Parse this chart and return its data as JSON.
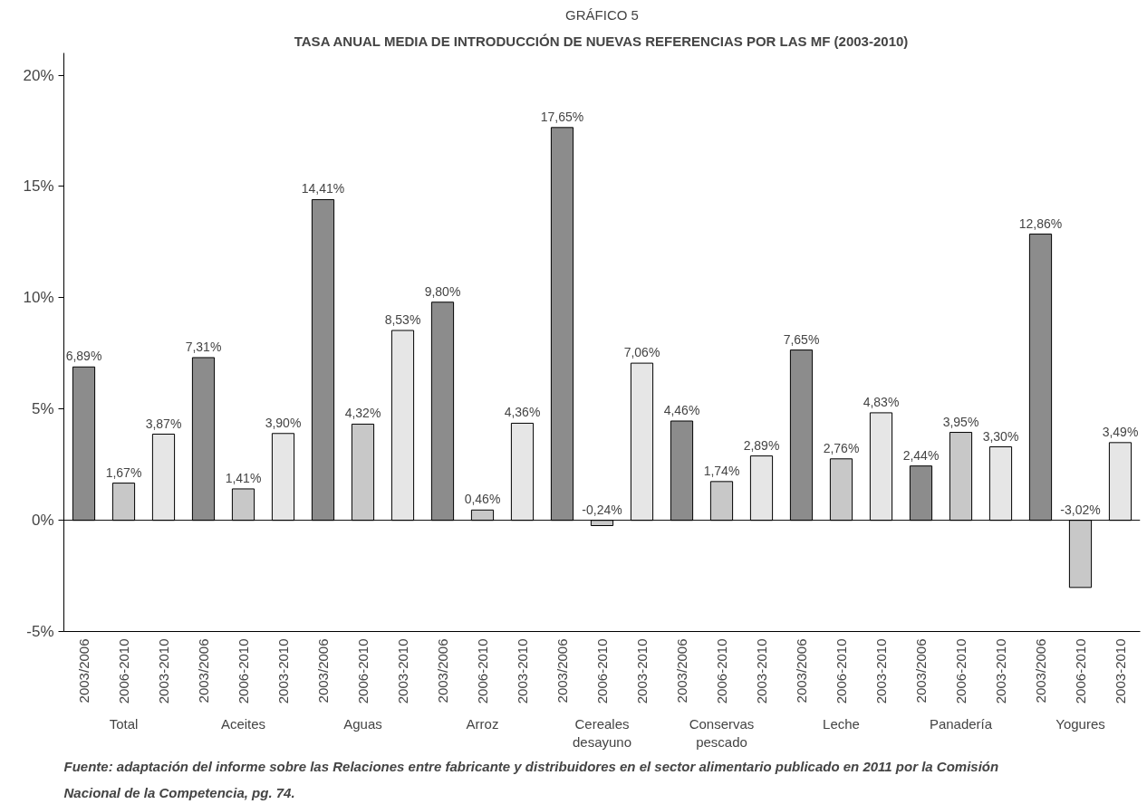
{
  "chart_data": {
    "type": "bar",
    "title": "GRÁFICO 5",
    "subtitle": "TASA ANUAL MEDIA DE INTRODUCCIÓN DE NUEVAS REFERENCIAS POR LAS MF (2003-2010)",
    "categories": [
      "2003/2006",
      "2006-2010",
      "2003-2010",
      "2003/2006",
      "2006-2010",
      "2003-2010",
      "2003/2006",
      "2006-2010",
      "2003-2010",
      "2003/2006",
      "2006-2010",
      "2003-2010",
      "2003/2006",
      "2006-2010",
      "2003-2010",
      "2003/2006",
      "2006-2010",
      "2003-2010",
      "2003/2006",
      "2006-2010",
      "2003-2010",
      "2003/2006",
      "2006-2010",
      "2003-2010",
      "2003/2006",
      "2006-2010",
      "2003-2010"
    ],
    "values": [
      6.89,
      1.67,
      3.87,
      7.31,
      1.41,
      3.9,
      14.41,
      4.32,
      8.53,
      9.8,
      0.46,
      4.36,
      17.65,
      -0.24,
      7.06,
      4.46,
      1.74,
      2.89,
      7.65,
      2.76,
      4.83,
      2.44,
      3.95,
      3.3,
      12.86,
      -3.02,
      3.49
    ],
    "value_labels": [
      "6,89%",
      "1,67%",
      "3,87%",
      "7,31%",
      "1,41%",
      "3,90%",
      "14,41%",
      "4,32%",
      "8,53%",
      "9,80%",
      "0,46%",
      "4,36%",
      "17,65%",
      "-0,24%",
      "7,06%",
      "4,46%",
      "1,74%",
      "2,89%",
      "7,65%",
      "2,76%",
      "4,83%",
      "2,44%",
      "3,95%",
      "3,30%",
      "12,86%",
      "-3,02%",
      "3,49%"
    ],
    "colors": [
      "#8c8c8c",
      "#c8c8c8",
      "#e6e6e6",
      "#8c8c8c",
      "#c8c8c8",
      "#e6e6e6",
      "#8c8c8c",
      "#c8c8c8",
      "#e6e6e6",
      "#8c8c8c",
      "#c8c8c8",
      "#e6e6e6",
      "#8c8c8c",
      "#c8c8c8",
      "#e6e6e6",
      "#8c8c8c",
      "#c8c8c8",
      "#e6e6e6",
      "#8c8c8c",
      "#c8c8c8",
      "#e6e6e6",
      "#8c8c8c",
      "#c8c8c8",
      "#e6e6e6",
      "#8c8c8c",
      "#c8c8c8",
      "#e6e6e6"
    ],
    "ylim": [
      -5,
      21
    ],
    "yticks": [
      {
        "value": -5,
        "label": "-5%"
      },
      {
        "value": 0,
        "label": "0%"
      },
      {
        "value": 5,
        "label": "5%"
      },
      {
        "value": 10,
        "label": "10%"
      },
      {
        "value": 15,
        "label": "15%"
      },
      {
        "value": 20,
        "label": "20%"
      }
    ],
    "ref_lines": [
      {
        "axis": "y",
        "value": 0
      }
    ],
    "grid": false,
    "annotations": [
      "Total",
      "Aceites",
      "Aguas",
      "Arroz",
      "Cereales desayuno",
      "Conservas pescado",
      "Leche",
      "Panadería",
      "Yogures",
      "Fuente: adaptación del informe sobre las Relaciones entre fabricante y distribuidores en el sector alimentario publicado en 2011 por la Comisión Nacional de la Competencia, pg. 74."
    ]
  }
}
